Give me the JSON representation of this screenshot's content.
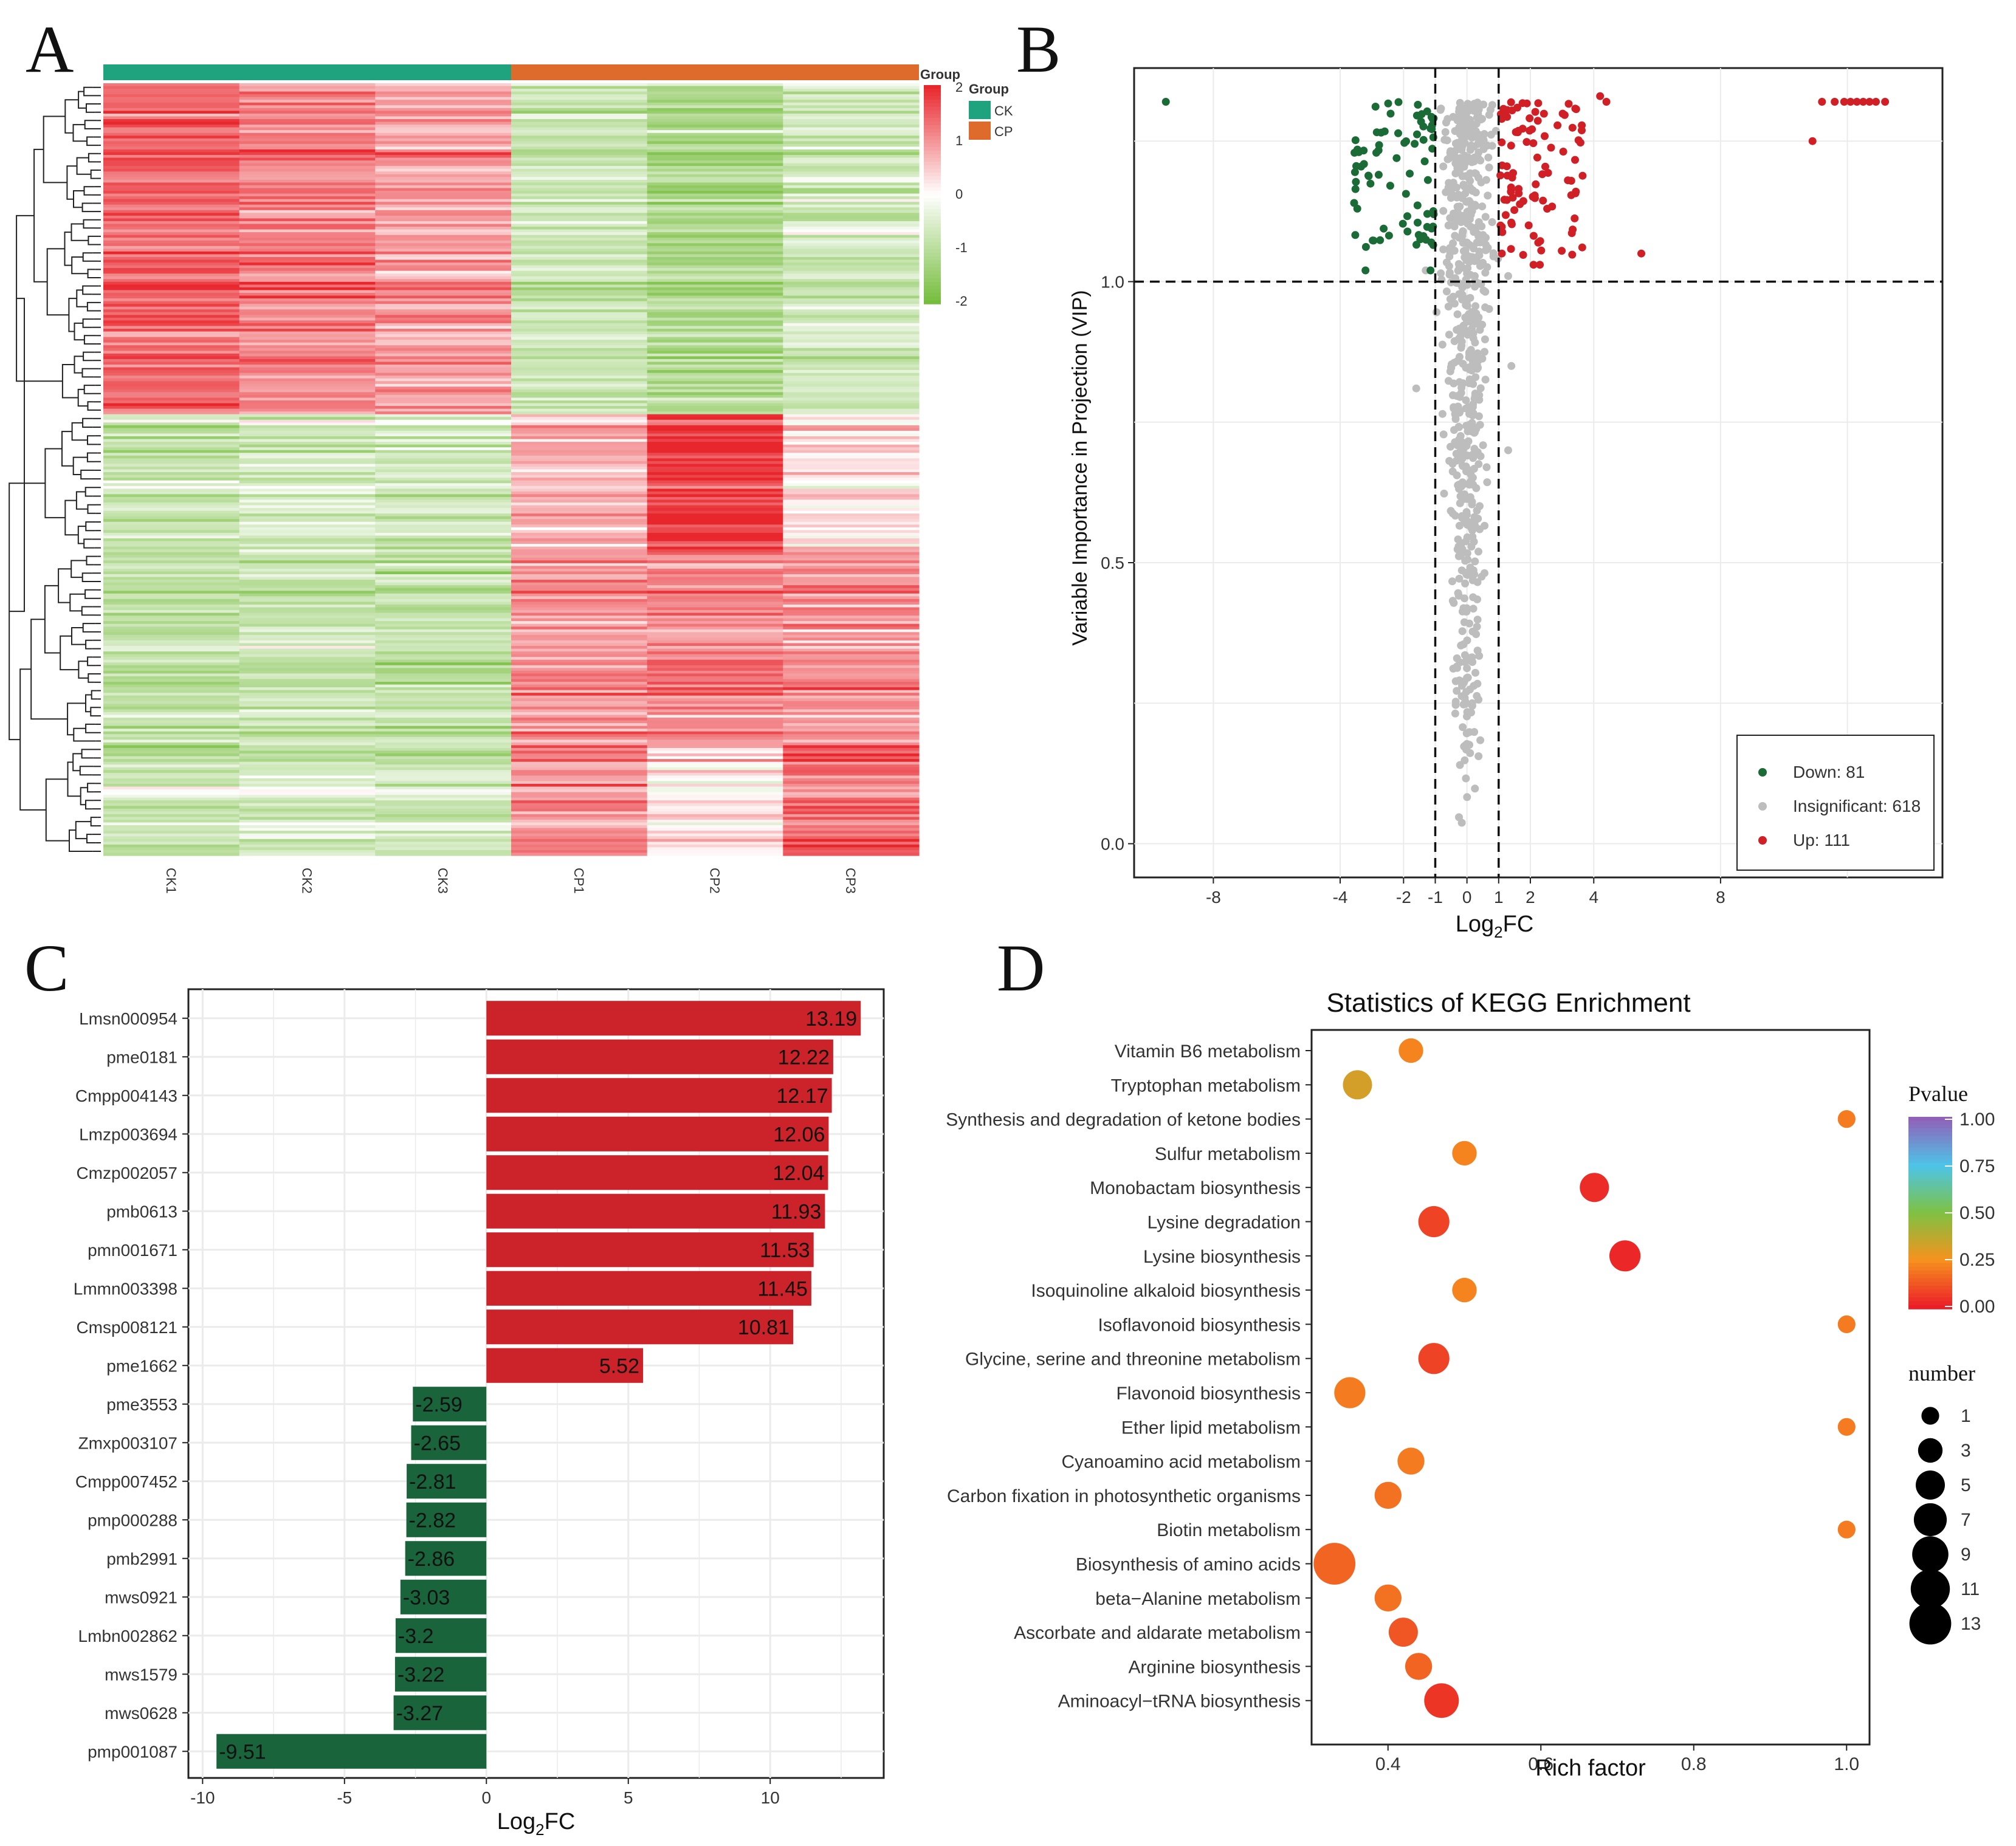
{
  "panels": {
    "a": "A",
    "b": "B",
    "c": "C",
    "d": "D"
  },
  "chart_data": [
    {
      "type": "heatmap",
      "samples": [
        "CK1",
        "CK2",
        "CK3",
        "CP1",
        "CP2",
        "CP3"
      ],
      "group_legend": {
        "title": "Group",
        "items": [
          {
            "name": "CK",
            "color": "#1fa37e"
          },
          {
            "name": "CP",
            "color": "#de6a2c"
          }
        ]
      },
      "group_header_label": "Group",
      "colorbar": {
        "ticks": [
          "2",
          "1",
          "0",
          "-1",
          "-2"
        ],
        "colors": [
          "#e8272d",
          "#ffffff",
          "#76bd3d"
        ]
      },
      "row_blocks": [
        {
          "rows": 120,
          "pattern": [
            1.4,
            1.2,
            0.9,
            -0.8,
            -1.2,
            -0.7
          ]
        },
        {
          "rows": 50,
          "pattern": [
            -0.8,
            -0.6,
            -0.7,
            0.7,
            1.9,
            0.3
          ]
        },
        {
          "rows": 70,
          "pattern": [
            -0.9,
            -0.8,
            -0.9,
            0.9,
            1.1,
            1.0
          ]
        },
        {
          "rows": 40,
          "pattern": [
            -0.8,
            -0.6,
            -0.7,
            1.1,
            0.2,
            1.4
          ]
        }
      ]
    },
    {
      "type": "scatter",
      "xlabel_main": "Log",
      "xlabel_sub": "2",
      "xlabel_tail": "FC",
      "ylabel": "Variable Importance in Projection (VIP)",
      "xlim": [
        -10.5,
        15
      ],
      "ylim": [
        -0.06,
        1.38
      ],
      "xticks": [
        -8,
        -4,
        -2,
        -1,
        0,
        1,
        2,
        4,
        8
      ],
      "yticks": [
        0.0,
        0.5,
        1.0
      ],
      "ytick_labels": [
        "0.0",
        "0.5",
        "1.0"
      ],
      "thresholds": {
        "x": [
          -1,
          1
        ],
        "y": 1.0
      },
      "legend": [
        {
          "label": "Down: 81",
          "color": "#1a6b35"
        },
        {
          "label": "Insignificant: 618",
          "color": "#bdbdbd"
        },
        {
          "label": "Up: 111",
          "color": "#d11f26"
        }
      ],
      "counts": {
        "down": 81,
        "insignificant": 618,
        "up": 111
      }
    },
    {
      "type": "bar",
      "orientation": "horizontal",
      "xlabel_main": "Log",
      "xlabel_sub": "2",
      "xlabel_tail": "FC",
      "xlim": [
        -10.5,
        14
      ],
      "xticks": [
        -10,
        -5,
        0,
        5,
        10
      ],
      "categories": [
        "Lmsn000954",
        "pme0181",
        "Cmpp004143",
        "Lmzp003694",
        "Cmzp002057",
        "pmb0613",
        "pmn001671",
        "Lmmn003398",
        "Cmsp008121",
        "pme1662",
        "pme3553",
        "Zmxp003107",
        "Cmpp007452",
        "pmp000288",
        "pmb2991",
        "mws0921",
        "Lmbn002862",
        "mws1579",
        "mws0628",
        "pmp001087"
      ],
      "values": [
        13.19,
        12.22,
        12.17,
        12.06,
        12.04,
        11.93,
        11.53,
        11.45,
        10.81,
        5.52,
        -2.59,
        -2.65,
        -2.81,
        -2.82,
        -2.86,
        -3.03,
        -3.2,
        -3.22,
        -3.27,
        -9.51
      ],
      "value_labels": [
        "13.19",
        "12.22",
        "12.17",
        "12.06",
        "12.04",
        "11.93",
        "11.53",
        "11.45",
        "10.81",
        "5.52",
        "-2.59",
        "-2.65",
        "-2.81",
        "-2.82",
        "-2.86",
        "-3.03",
        "-3.2",
        "-3.22",
        "-3.27",
        "-9.51"
      ],
      "colors": {
        "positive": "#cc2229",
        "negative": "#19643a"
      }
    },
    {
      "type": "scatter",
      "title": "Statistics of KEGG Enrichment",
      "xlabel": "Rich factor",
      "xlim": [
        0.3,
        1.03
      ],
      "xticks": [
        0.4,
        0.6,
        0.8,
        1.0
      ],
      "xtick_labels": [
        "0.4",
        "0.6",
        "0.8",
        "1.0"
      ],
      "pathways": [
        {
          "name": "Vitamin B6 metabolism",
          "rich": 0.43,
          "pvalue": 0.22,
          "number": 3
        },
        {
          "name": "Tryptophan metabolism",
          "rich": 0.36,
          "pvalue": 0.32,
          "number": 5
        },
        {
          "name": "Synthesis and degradation of ketone bodies",
          "rich": 1.0,
          "pvalue": 0.2,
          "number": 1
        },
        {
          "name": "Sulfur metabolism",
          "rich": 0.5,
          "pvalue": 0.22,
          "number": 3
        },
        {
          "name": "Monobactam biosynthesis",
          "rich": 0.67,
          "pvalue": 0.03,
          "number": 5
        },
        {
          "name": "Lysine degradation",
          "rich": 0.46,
          "pvalue": 0.08,
          "number": 6
        },
        {
          "name": "Lysine biosynthesis",
          "rich": 0.71,
          "pvalue": 0.02,
          "number": 6
        },
        {
          "name": "Isoquinoline alkaloid biosynthesis",
          "rich": 0.5,
          "pvalue": 0.22,
          "number": 3
        },
        {
          "name": "Isoflavonoid biosynthesis",
          "rich": 1.0,
          "pvalue": 0.2,
          "number": 1
        },
        {
          "name": "Glycine, serine and threonine metabolism",
          "rich": 0.46,
          "pvalue": 0.08,
          "number": 6
        },
        {
          "name": "Flavonoid biosynthesis",
          "rich": 0.35,
          "pvalue": 0.2,
          "number": 6
        },
        {
          "name": "Ether lipid metabolism",
          "rich": 1.0,
          "pvalue": 0.2,
          "number": 1
        },
        {
          "name": "Cyanoamino acid metabolism",
          "rich": 0.43,
          "pvalue": 0.2,
          "number": 4
        },
        {
          "name": "Carbon fixation in photosynthetic organisms",
          "rich": 0.4,
          "pvalue": 0.18,
          "number": 4
        },
        {
          "name": "Biotin metabolism",
          "rich": 1.0,
          "pvalue": 0.2,
          "number": 1
        },
        {
          "name": "Biosynthesis of amino acids",
          "rich": 0.33,
          "pvalue": 0.15,
          "number": 13
        },
        {
          "name": "beta−Alanine metabolism",
          "rich": 0.4,
          "pvalue": 0.18,
          "number": 4
        },
        {
          "name": "Ascorbate and aldarate metabolism",
          "rich": 0.42,
          "pvalue": 0.12,
          "number": 5
        },
        {
          "name": "Arginine biosynthesis",
          "rich": 0.44,
          "pvalue": 0.15,
          "number": 4
        },
        {
          "name": "Aminoacyl−tRNA biosynthesis",
          "rich": 0.47,
          "pvalue": 0.05,
          "number": 8
        }
      ],
      "legend_pvalue": {
        "title": "Pvalue",
        "ticks": [
          "1.00",
          "0.75",
          "0.50",
          "0.25",
          "0.00"
        ]
      },
      "legend_number": {
        "title": "number",
        "labels": [
          "1",
          "3",
          "5",
          "7",
          "9",
          "11",
          "13"
        ]
      }
    }
  ]
}
